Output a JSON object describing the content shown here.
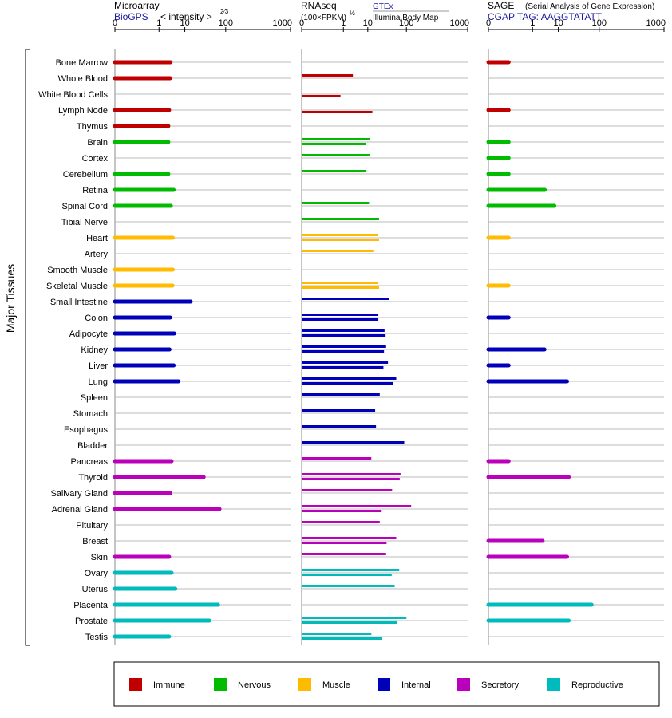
{
  "panels": {
    "microarray": {
      "title": "Microarray",
      "source": "BioGPS",
      "scale_label": "< intensity >",
      "scale_exp": "2⁄3",
      "ticks": [
        "0",
        "1",
        "10",
        "100",
        "1000"
      ]
    },
    "rnaseq": {
      "title": "RNAseq",
      "scale_label": "(100×FPKM)",
      "scale_exp": "½",
      "legend_a": "GTEx",
      "legend_b": "Illumina Body Map",
      "ticks": [
        "0",
        "1",
        "10",
        "100",
        "1000"
      ]
    },
    "sage": {
      "title": "SAGE",
      "subtitle": "(Serial Analysis of Gene Expression)",
      "tag": "CGAP TAG: AAGGTATATT",
      "ticks": [
        "0",
        "1",
        "10",
        "100",
        "1000"
      ]
    }
  },
  "y_group_label": "Major Tissues",
  "legend": [
    {
      "name": "Immune",
      "color": "#c00000"
    },
    {
      "name": "Nervous",
      "color": "#00bb00"
    },
    {
      "name": "Muscle",
      "color": "#ffbb00"
    },
    {
      "name": "Internal",
      "color": "#0000bb"
    },
    {
      "name": "Secretory",
      "color": "#bb00bb"
    },
    {
      "name": "Reproductive",
      "color": "#00bbbb"
    }
  ],
  "chart_data": {
    "type": "bar",
    "orientation": "horizontal",
    "scale": "power",
    "axis_range": [
      0,
      1000
    ],
    "tissues": [
      {
        "name": "Bone Marrow",
        "group": "Immune",
        "microarray": 3.2,
        "gtex": null,
        "ibm": null,
        "sage": 0.02
      },
      {
        "name": "Whole Blood",
        "group": "Immune",
        "microarray": 3.1,
        "gtex": 2.8,
        "ibm": null,
        "sage": null
      },
      {
        "name": "White Blood Cells",
        "group": "Immune",
        "microarray": null,
        "gtex": null,
        "ibm": 0.7,
        "sage": null
      },
      {
        "name": "Lymph Node",
        "group": "Immune",
        "microarray": 2.8,
        "gtex": null,
        "ibm": 14,
        "sage": 0.02
      },
      {
        "name": "Thymus",
        "group": "Immune",
        "microarray": 2.6,
        "gtex": null,
        "ibm": null,
        "sage": null
      },
      {
        "name": "Brain",
        "group": "Nervous",
        "microarray": 2.6,
        "gtex": 12,
        "ibm": 9,
        "sage": 0.02
      },
      {
        "name": "Cortex",
        "group": "Nervous",
        "microarray": null,
        "gtex": 12,
        "ibm": null,
        "sage": 0.02
      },
      {
        "name": "Cerebellum",
        "group": "Nervous",
        "microarray": 2.6,
        "gtex": 9,
        "ibm": null,
        "sage": 0.02
      },
      {
        "name": "Retina",
        "group": "Nervous",
        "microarray": 4.2,
        "gtex": null,
        "ibm": null,
        "sage": 3.4
      },
      {
        "name": "Spinal Cord",
        "group": "Nervous",
        "microarray": 3.3,
        "gtex": 11,
        "ibm": null,
        "sage": 7.5
      },
      {
        "name": "Tibial Nerve",
        "group": "Nervous",
        "microarray": null,
        "gtex": 22,
        "ibm": null,
        "sage": null
      },
      {
        "name": "Heart",
        "group": "Muscle",
        "microarray": 3.9,
        "gtex": 20,
        "ibm": 22,
        "sage": 0.02
      },
      {
        "name": "Artery",
        "group": "Muscle",
        "microarray": null,
        "gtex": 15,
        "ibm": null,
        "sage": null
      },
      {
        "name": "Smooth Muscle",
        "group": "Muscle",
        "microarray": 3.9,
        "gtex": null,
        "ibm": null,
        "sage": null
      },
      {
        "name": "Skeletal Muscle",
        "group": "Muscle",
        "microarray": 3.8,
        "gtex": 20,
        "ibm": 22,
        "sage": 0.02
      },
      {
        "name": "Small Intestine",
        "group": "Internal",
        "microarray": 15,
        "gtex": 40,
        "ibm": null,
        "sage": null
      },
      {
        "name": "Colon",
        "group": "Internal",
        "microarray": 3.1,
        "gtex": 21,
        "ibm": 21,
        "sage": 0.02
      },
      {
        "name": "Adipocyte",
        "group": "Internal",
        "microarray": 4.4,
        "gtex": 31,
        "ibm": 33,
        "sage": null
      },
      {
        "name": "Kidney",
        "group": "Internal",
        "microarray": 2.9,
        "gtex": 34,
        "ibm": 30,
        "sage": 3.3
      },
      {
        "name": "Liver",
        "group": "Internal",
        "microarray": 4.2,
        "gtex": 38,
        "ibm": 29,
        "sage": 0.02
      },
      {
        "name": "Lung",
        "group": "Internal",
        "microarray": 6.2,
        "gtex": 60,
        "ibm": 50,
        "sage": 18
      },
      {
        "name": "Spleen",
        "group": "Internal",
        "microarray": null,
        "gtex": 23,
        "ibm": null,
        "sage": null
      },
      {
        "name": "Stomach",
        "group": "Internal",
        "microarray": null,
        "gtex": 17,
        "ibm": null,
        "sage": null
      },
      {
        "name": "Esophagus",
        "group": "Internal",
        "microarray": null,
        "gtex": 18,
        "ibm": null,
        "sage": null
      },
      {
        "name": "Bladder",
        "group": "Internal",
        "microarray": null,
        "gtex": 90,
        "ibm": null,
        "sage": null
      },
      {
        "name": "Pancreas",
        "group": "Secretory",
        "microarray": 3.5,
        "gtex": 13,
        "ibm": null,
        "sage": 0.02
      },
      {
        "name": "Thyroid",
        "group": "Secretory",
        "microarray": 33,
        "gtex": 75,
        "ibm": 72,
        "sage": 20
      },
      {
        "name": "Salivary Gland",
        "group": "Secretory",
        "microarray": 3.1,
        "gtex": 48,
        "ibm": null,
        "sage": null
      },
      {
        "name": "Adrenal Gland",
        "group": "Secretory",
        "microarray": 75,
        "gtex": 125,
        "ibm": 26,
        "sage": null
      },
      {
        "name": "Pituitary",
        "group": "Secretory",
        "microarray": null,
        "gtex": 23,
        "ibm": null,
        "sage": null
      },
      {
        "name": "Breast",
        "group": "Secretory",
        "microarray": null,
        "gtex": 60,
        "ibm": 35,
        "sage": 2.8
      },
      {
        "name": "Skin",
        "group": "Secretory",
        "microarray": 2.8,
        "gtex": 34,
        "ibm": null,
        "sage": 18
      },
      {
        "name": "Ovary",
        "group": "Reproductive",
        "microarray": 3.5,
        "gtex": 70,
        "ibm": 47,
        "sage": null
      },
      {
        "name": "Uterus",
        "group": "Reproductive",
        "microarray": 4.8,
        "gtex": 55,
        "ibm": null,
        "sage": null
      },
      {
        "name": "Placenta",
        "group": "Reproductive",
        "microarray": 70,
        "gtex": null,
        "ibm": null,
        "sage": 70
      },
      {
        "name": "Prostate",
        "group": "Reproductive",
        "microarray": 45,
        "gtex": 100,
        "ibm": 63,
        "sage": 20
      },
      {
        "name": "Testis",
        "group": "Reproductive",
        "microarray": 2.8,
        "gtex": 13,
        "ibm": 27,
        "sage": null
      }
    ]
  }
}
